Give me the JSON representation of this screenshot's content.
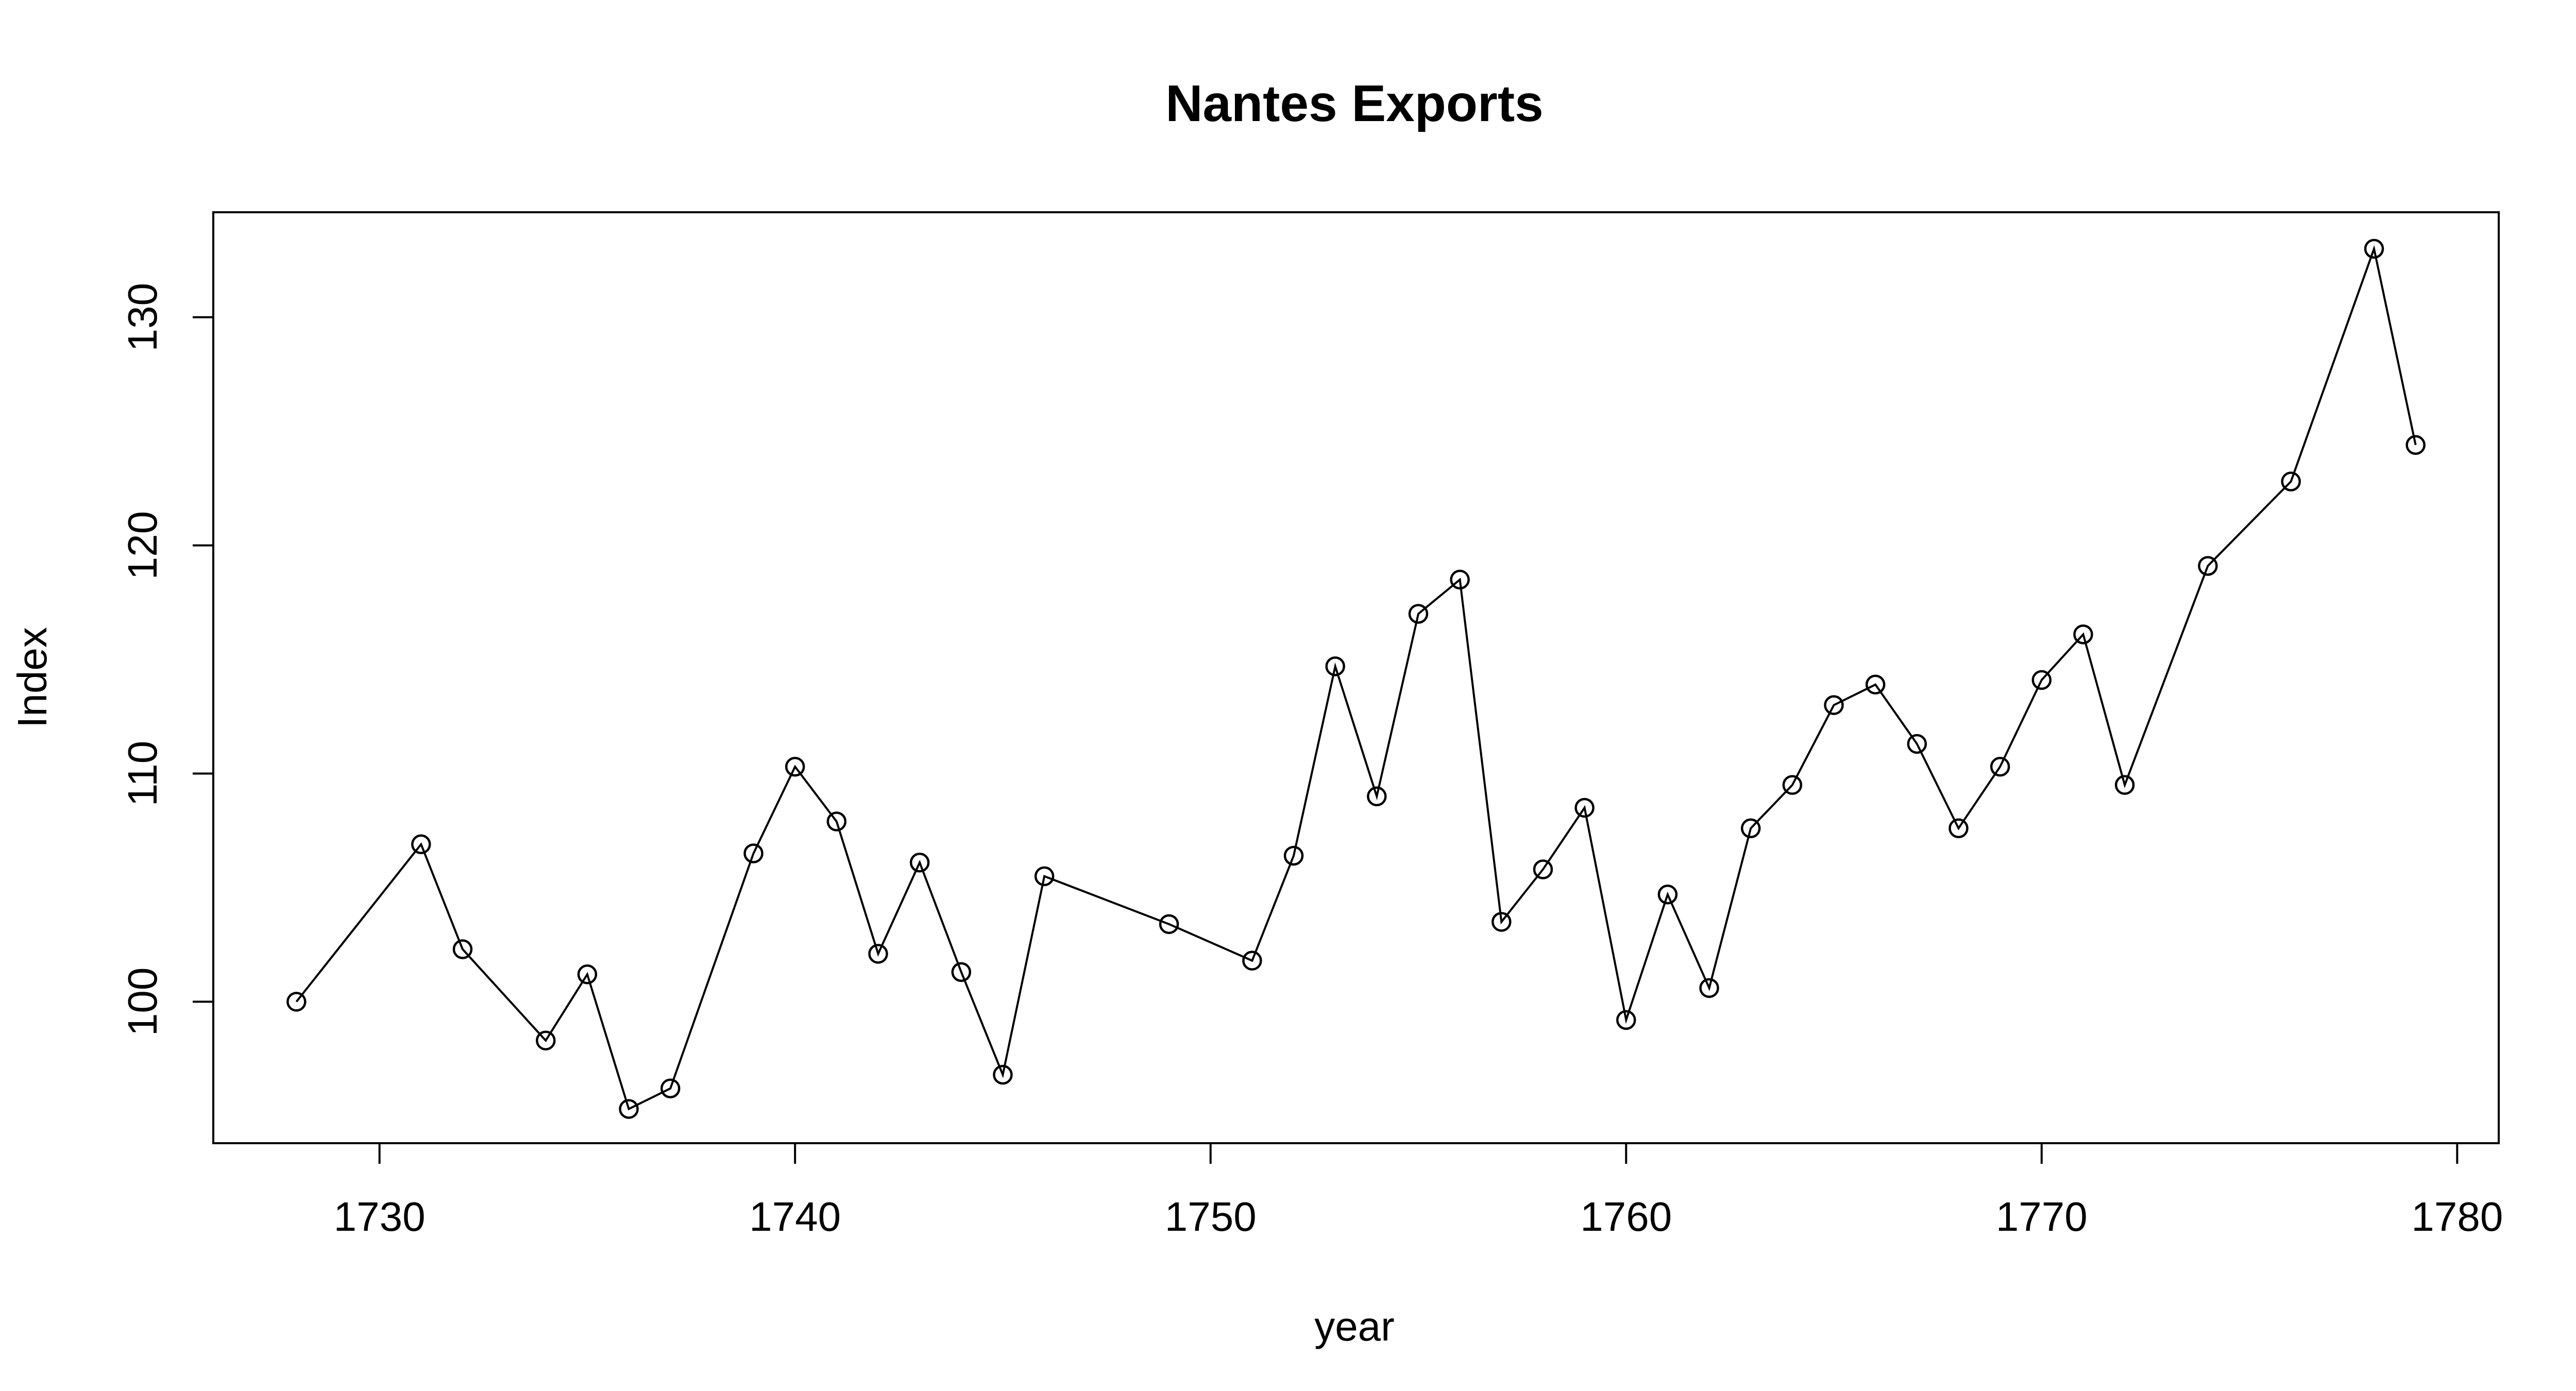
{
  "chart_data": {
    "type": "line",
    "title": "Nantes Exports",
    "xlabel": "year",
    "ylabel": "Index",
    "xlim": [
      1726,
      1781
    ],
    "ylim": [
      93.8,
      134.6
    ],
    "x_ticks": [
      1730,
      1740,
      1750,
      1760,
      1770,
      1780
    ],
    "y_ticks": [
      100,
      110,
      120,
      130
    ],
    "grid": false,
    "markers": "open-circle",
    "series": [
      {
        "x": [
          1728,
          1731,
          1732,
          1734,
          1735,
          1736,
          1737,
          1739,
          1740,
          1741,
          1742,
          1743,
          1744,
          1745,
          1746,
          1749,
          1751,
          1752,
          1753,
          1754,
          1755,
          1756,
          1757,
          1758,
          1759,
          1760,
          1761,
          1762,
          1763,
          1764,
          1765,
          1766,
          1767,
          1768,
          1769,
          1770,
          1771,
          1772,
          1774,
          1776,
          1778,
          1779
        ],
        "y": [
          100.0,
          106.9,
          102.3,
          98.3,
          101.2,
          95.3,
          96.2,
          106.5,
          110.3,
          107.9,
          102.1,
          106.1,
          101.3,
          96.8,
          105.5,
          103.4,
          101.8,
          106.4,
          114.7,
          109.0,
          117.0,
          118.5,
          103.5,
          105.8,
          108.5,
          99.2,
          104.7,
          100.6,
          107.6,
          109.5,
          113.0,
          113.9,
          111.3,
          107.6,
          110.3,
          114.1,
          116.1,
          109.5,
          119.1,
          122.8,
          133.0,
          124.4
        ]
      }
    ]
  }
}
